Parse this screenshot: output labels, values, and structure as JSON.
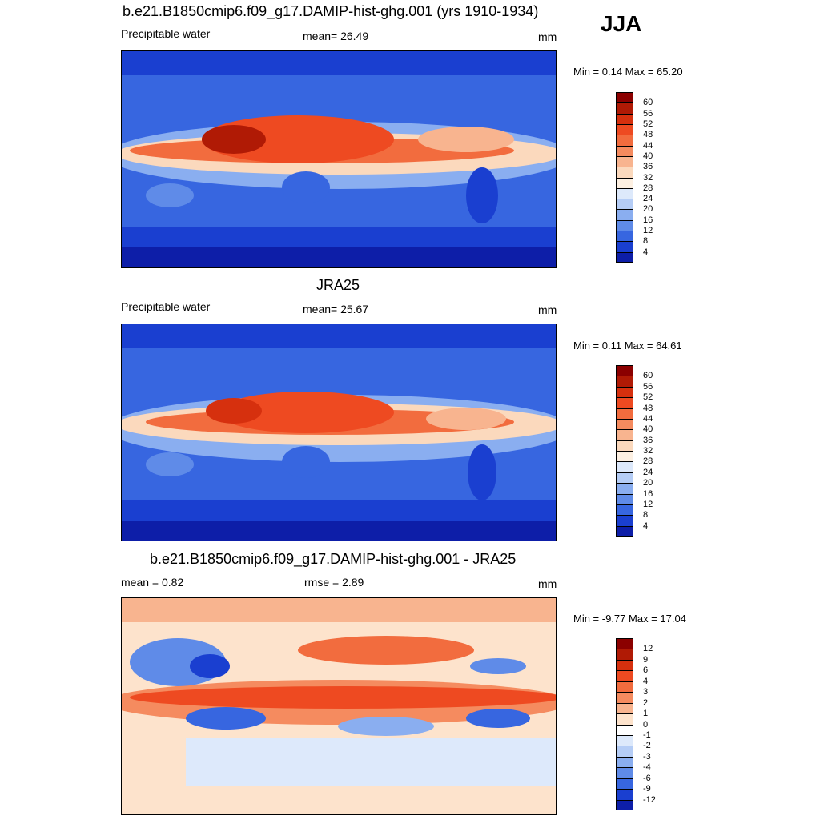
{
  "season": "JJA",
  "panels": [
    {
      "title": "b.e21.B1850cmip6.f09_g17.DAMIP-hist-ghg.001 (yrs 1910-1934)",
      "left_text": "Precipitable water",
      "center_text": "mean=  26.49",
      "units": "mm",
      "minmax": "Min =   0.14 Max =  65.20",
      "colorbar_labels": [
        "60",
        "56",
        "52",
        "48",
        "44",
        "40",
        "36",
        "32",
        "28",
        "24",
        "20",
        "16",
        "12",
        "8",
        "4"
      ],
      "colors": [
        "#8b0000",
        "#b01a05",
        "#d6300e",
        "#ee4a21",
        "#f26c3e",
        "#f58b5f",
        "#f8b48f",
        "#fbd9bd",
        "#fdf0e2",
        "#dde9fb",
        "#b5cdf6",
        "#8aaef0",
        "#5f8be8",
        "#3766e0",
        "#1a3fd0",
        "#0d1ea8"
      ]
    },
    {
      "title": "JRA25",
      "left_text": "Precipitable water",
      "center_text": "mean=  25.67",
      "units": "mm",
      "minmax": "Min =   0.11 Max =  64.61",
      "colorbar_labels": [
        "60",
        "56",
        "52",
        "48",
        "44",
        "40",
        "36",
        "32",
        "28",
        "24",
        "20",
        "16",
        "12",
        "8",
        "4"
      ],
      "colors": [
        "#8b0000",
        "#b01a05",
        "#d6300e",
        "#ee4a21",
        "#f26c3e",
        "#f58b5f",
        "#f8b48f",
        "#fbd9bd",
        "#fdf0e2",
        "#dde9fb",
        "#b5cdf6",
        "#8aaef0",
        "#5f8be8",
        "#3766e0",
        "#1a3fd0",
        "#0d1ea8"
      ]
    },
    {
      "title": "b.e21.B1850cmip6.f09_g17.DAMIP-hist-ghg.001 - JRA25",
      "left_text": "mean =   0.82",
      "center_text": "rmse =   2.89",
      "units": "mm",
      "minmax": "Min =  -9.77 Max =  17.04",
      "colorbar_labels": [
        "12",
        "9",
        "6",
        "4",
        "3",
        "2",
        "1",
        "0",
        "-1",
        "-2",
        "-3",
        "-4",
        "-6",
        "-9",
        "-12"
      ],
      "colors": [
        "#8b0000",
        "#b01a05",
        "#d6300e",
        "#ee4a21",
        "#f26c3e",
        "#f58b5f",
        "#f8b48f",
        "#fde3cc",
        "#ffffff",
        "#dde9fb",
        "#b5cdf6",
        "#8aaef0",
        "#5f8be8",
        "#3766e0",
        "#1a3fd0",
        "#0d1ea8"
      ]
    }
  ]
}
